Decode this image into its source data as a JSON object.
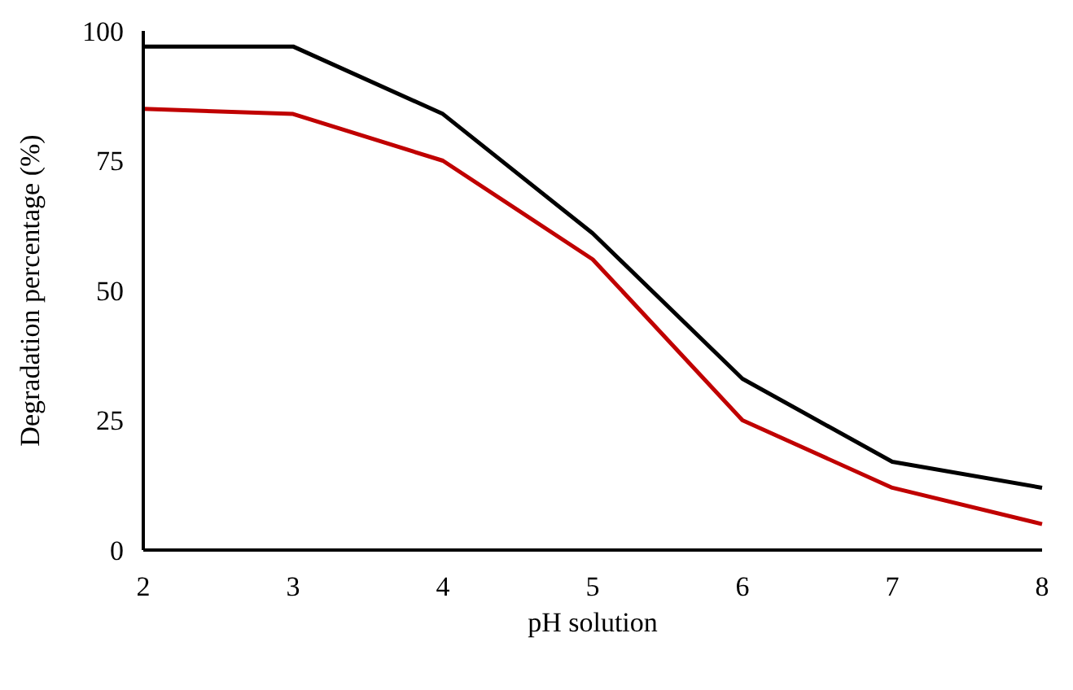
{
  "chart_data": {
    "type": "line",
    "xlabel": "pH solution",
    "ylabel": "Degradation percentage (%)",
    "x": [
      2,
      3,
      4,
      5,
      6,
      7,
      8
    ],
    "series": [
      {
        "color": "#000000",
        "values": [
          97,
          97,
          84,
          61,
          33,
          17,
          12
        ]
      },
      {
        "color": "#c00000",
        "values": [
          85,
          84,
          75,
          56,
          25,
          12,
          5
        ]
      }
    ],
    "xlim": [
      2,
      8
    ],
    "xticks": [
      2,
      3,
      4,
      5,
      6,
      7,
      8
    ],
    "ylim": [
      0,
      100
    ],
    "yticks": [
      0,
      25,
      50,
      75,
      100
    ],
    "grid": false,
    "marker": "none",
    "line_style": "solid"
  }
}
